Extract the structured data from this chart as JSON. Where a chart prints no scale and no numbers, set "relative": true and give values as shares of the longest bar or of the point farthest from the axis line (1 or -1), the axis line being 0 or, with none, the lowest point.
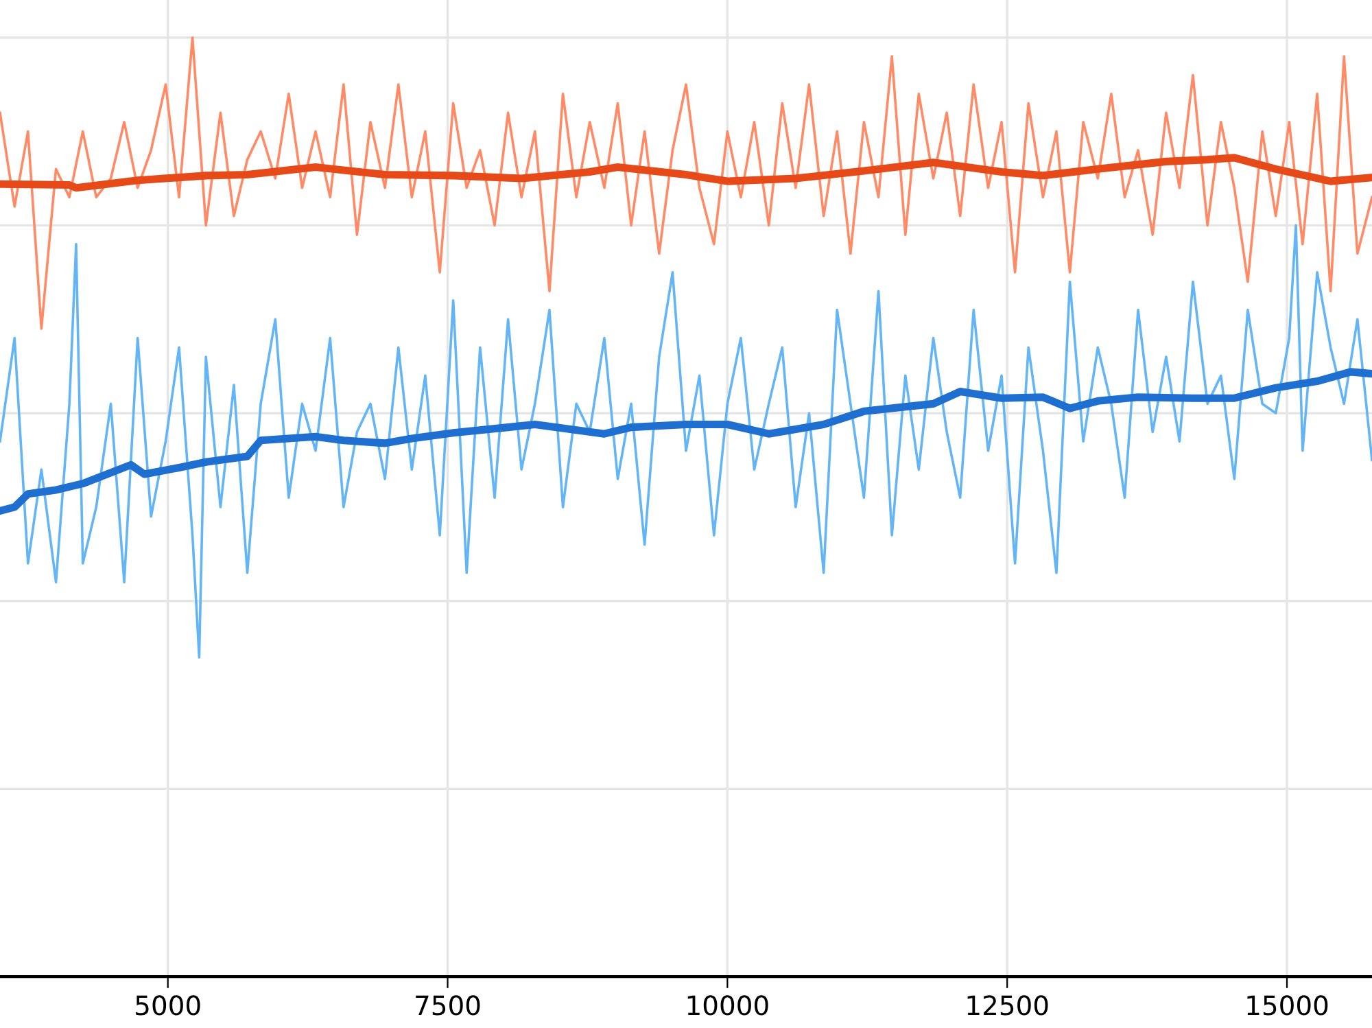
{
  "chart_data": {
    "type": "line",
    "relative": true,
    "xlim": [
      3500,
      15760
    ],
    "xticks": [
      5000,
      7500,
      10000,
      12500,
      15000
    ],
    "tick_labels": "x",
    "grid": true,
    "legend": false,
    "series": [
      {
        "color": "#ff8a65",
        "x": [
          3500,
          3630,
          3750,
          3870,
          4000,
          4120,
          4240,
          4360,
          4490,
          4610,
          4730,
          4850,
          4980,
          5100,
          5220,
          5340,
          5470,
          5590,
          5710,
          5830,
          5960,
          6080,
          6200,
          6320,
          6450,
          6570,
          6690,
          6810,
          6940,
          7060,
          7180,
          7300,
          7430,
          7550,
          7670,
          7790,
          7920,
          8040,
          8160,
          8280,
          8410,
          8530,
          8650,
          8770,
          8900,
          9020,
          9140,
          9260,
          9390,
          9510,
          9630,
          9750,
          9880,
          10000,
          10120,
          10240,
          10370,
          10490,
          10610,
          10730,
          10860,
          10980,
          11100,
          11220,
          11350,
          11470,
          11590,
          11710,
          11840,
          11960,
          12080,
          12200,
          12330,
          12450,
          12570,
          12690,
          12820,
          12940,
          13060,
          13180,
          13310,
          13430,
          13550,
          13670,
          13800,
          13920,
          14040,
          14160,
          14290,
          14410,
          14530,
          14650,
          14780,
          14900,
          15020,
          15140,
          15270,
          15390,
          15510,
          15630,
          15760
        ],
        "values": [
          0.92,
          0.82,
          0.9,
          0.69,
          0.86,
          0.83,
          0.9,
          0.83,
          0.85,
          0.91,
          0.84,
          0.88,
          0.95,
          0.83,
          1.0,
          0.8,
          0.92,
          0.81,
          0.87,
          0.9,
          0.85,
          0.94,
          0.84,
          0.9,
          0.83,
          0.95,
          0.79,
          0.91,
          0.84,
          0.95,
          0.83,
          0.9,
          0.75,
          0.93,
          0.84,
          0.88,
          0.8,
          0.92,
          0.83,
          0.9,
          0.73,
          0.94,
          0.83,
          0.91,
          0.84,
          0.93,
          0.8,
          0.9,
          0.77,
          0.88,
          0.95,
          0.84,
          0.78,
          0.9,
          0.83,
          0.91,
          0.8,
          0.93,
          0.84,
          0.95,
          0.81,
          0.9,
          0.77,
          0.91,
          0.83,
          0.98,
          0.79,
          0.94,
          0.85,
          0.92,
          0.81,
          0.95,
          0.84,
          0.91,
          0.75,
          0.93,
          0.83,
          0.9,
          0.75,
          0.91,
          0.85,
          0.94,
          0.83,
          0.88,
          0.79,
          0.92,
          0.84,
          0.96,
          0.8,
          0.91,
          0.84,
          0.74,
          0.9,
          0.81,
          0.91,
          0.78,
          0.94,
          0.73,
          0.98,
          0.77,
          0.83
        ]
      },
      {
        "color": "#64b5f6",
        "x": [
          3500,
          3630,
          3750,
          3870,
          4000,
          4120,
          4180,
          4240,
          4360,
          4490,
          4610,
          4730,
          4850,
          4980,
          5100,
          5220,
          5280,
          5340,
          5470,
          5590,
          5710,
          5830,
          5960,
          6080,
          6200,
          6320,
          6450,
          6570,
          6690,
          6810,
          6940,
          7060,
          7180,
          7300,
          7430,
          7550,
          7670,
          7790,
          7920,
          8040,
          8160,
          8280,
          8410,
          8530,
          8650,
          8770,
          8900,
          9020,
          9140,
          9260,
          9390,
          9510,
          9630,
          9750,
          9880,
          10000,
          10120,
          10240,
          10370,
          10490,
          10610,
          10730,
          10860,
          10980,
          11100,
          11220,
          11350,
          11470,
          11590,
          11710,
          11840,
          11960,
          12080,
          12200,
          12330,
          12450,
          12570,
          12690,
          12820,
          12940,
          13060,
          13180,
          13310,
          13430,
          13550,
          13670,
          13800,
          13920,
          14040,
          14160,
          14290,
          14410,
          14530,
          14650,
          14780,
          14900,
          15020,
          15080,
          15140,
          15270,
          15390,
          15510,
          15630,
          15760
        ],
        "values": [
          0.57,
          0.68,
          0.44,
          0.54,
          0.42,
          0.61,
          0.78,
          0.44,
          0.5,
          0.61,
          0.42,
          0.68,
          0.49,
          0.57,
          0.67,
          0.47,
          0.34,
          0.66,
          0.5,
          0.63,
          0.43,
          0.61,
          0.7,
          0.51,
          0.61,
          0.56,
          0.68,
          0.5,
          0.58,
          0.61,
          0.53,
          0.67,
          0.54,
          0.64,
          0.47,
          0.72,
          0.43,
          0.67,
          0.51,
          0.7,
          0.54,
          0.61,
          0.71,
          0.5,
          0.61,
          0.58,
          0.68,
          0.53,
          0.61,
          0.46,
          0.66,
          0.75,
          0.56,
          0.64,
          0.47,
          0.61,
          0.68,
          0.54,
          0.61,
          0.67,
          0.5,
          0.6,
          0.43,
          0.71,
          0.61,
          0.51,
          0.73,
          0.47,
          0.64,
          0.54,
          0.68,
          0.58,
          0.51,
          0.71,
          0.56,
          0.64,
          0.44,
          0.67,
          0.56,
          0.43,
          0.74,
          0.57,
          0.67,
          0.61,
          0.51,
          0.71,
          0.58,
          0.66,
          0.57,
          0.74,
          0.61,
          0.64,
          0.53,
          0.71,
          0.61,
          0.6,
          0.68,
          0.8,
          0.56,
          0.75,
          0.67,
          0.61,
          0.7,
          0.55
        ]
      },
      {
        "color": "#e64a19",
        "x": [
          3500,
          4120,
          4180,
          4730,
          5340,
          5710,
          6320,
          6940,
          7550,
          8160,
          8770,
          9020,
          9630,
          10000,
          10610,
          11220,
          11840,
          12450,
          12820,
          13310,
          13920,
          14290,
          14530,
          14900,
          15390,
          15760
        ],
        "values": [
          0.844,
          0.843,
          0.84,
          0.848,
          0.853,
          0.854,
          0.862,
          0.854,
          0.853,
          0.85,
          0.857,
          0.862,
          0.854,
          0.847,
          0.85,
          0.858,
          0.867,
          0.857,
          0.853,
          0.86,
          0.868,
          0.87,
          0.872,
          0.86,
          0.847,
          0.851
        ]
      },
      {
        "color": "#1f6fd0",
        "x": [
          3500,
          3630,
          3750,
          3990,
          4240,
          4670,
          4790,
          5100,
          5340,
          5710,
          5830,
          6320,
          6570,
          6940,
          7180,
          7550,
          8040,
          8280,
          8900,
          9140,
          9630,
          10000,
          10370,
          10860,
          11220,
          11840,
          12080,
          12450,
          12820,
          13060,
          13310,
          13670,
          14160,
          14530,
          14900,
          15270,
          15570,
          15760
        ],
        "values": [
          0.496,
          0.5,
          0.514,
          0.518,
          0.525,
          0.545,
          0.535,
          0.542,
          0.548,
          0.554,
          0.571,
          0.575,
          0.571,
          0.568,
          0.573,
          0.579,
          0.585,
          0.588,
          0.578,
          0.585,
          0.588,
          0.588,
          0.578,
          0.588,
          0.602,
          0.61,
          0.623,
          0.616,
          0.617,
          0.605,
          0.613,
          0.617,
          0.616,
          0.616,
          0.627,
          0.634,
          0.644,
          0.642
        ]
      }
    ]
  }
}
